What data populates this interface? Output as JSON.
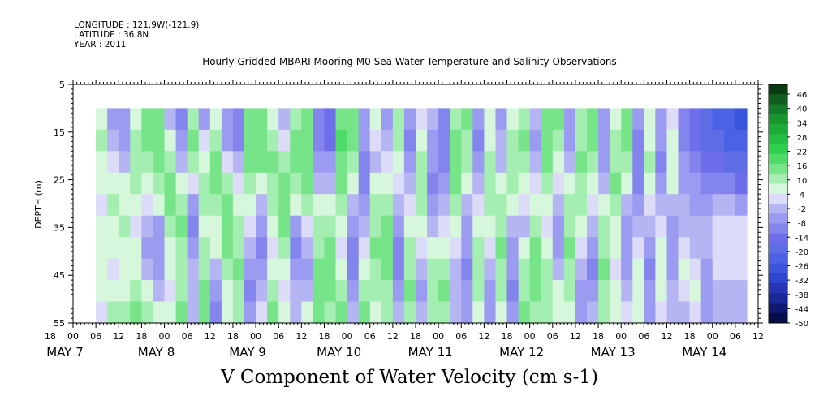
{
  "header": {
    "longitude": "LONGITUDE : 121.9W(-121.9)",
    "latitude": "LATITUDE : 36.8N",
    "year": "YEAR : 2011"
  },
  "chart_data": {
    "type": "heatmap",
    "title": "Hourly Gridded MBARI Mooring M0 Sea Water Temperature and Salinity Observations",
    "xlabel": "V Component of Water Velocity (cm s-1)",
    "ylabel": "DEPTH (m)",
    "y_ticks": [
      5,
      15,
      25,
      35,
      45,
      55
    ],
    "ylim": [
      5,
      55
    ],
    "y_inverted": true,
    "data_depth_range": [
      10,
      55
    ],
    "x_hour_ticks": [
      "18",
      "00",
      "06",
      "12",
      "18",
      "00",
      "06",
      "12",
      "18",
      "00",
      "06",
      "12",
      "18",
      "00",
      "06",
      "12",
      "18",
      "00",
      "06",
      "12",
      "18",
      "00",
      "06",
      "12",
      "18",
      "00",
      "06",
      "12",
      "18",
      "00",
      "06",
      "12"
    ],
    "x_hour_offset_first": 18,
    "x_hour_step": 6,
    "x_day_labels": [
      "MAY  7",
      "MAY  8",
      "MAY  9",
      "MAY 10",
      "MAY 11",
      "MAY 12",
      "MAY 13",
      "MAY 14"
    ],
    "x_day_label_hours": [
      0,
      24,
      48,
      72,
      96,
      120,
      144,
      168
    ],
    "x_data_start_hour": 6,
    "colorbar": {
      "labels": [
        46,
        40,
        34,
        28,
        22,
        16,
        10,
        4,
        -2,
        -8,
        -14,
        -20,
        -26,
        -32,
        -38,
        -44,
        -50
      ],
      "colors": [
        "#0a3a14",
        "#0f5c1f",
        "#137a27",
        "#17962f",
        "#1cab37",
        "#22bf41",
        "#2fd04e",
        "#4fdb68",
        "#77e48a",
        "#a3eeb0",
        "#d6f7dc",
        "#dcdcf8",
        "#b5b5f4",
        "#9b9bf1",
        "#8484ee",
        "#6e6eea",
        "#5d6de6",
        "#4a62e3",
        "#3a55dc",
        "#2e46cf",
        "#2436b4",
        "#1a2796",
        "#10196f",
        "#070d4a"
      ],
      "band_values": [
        49,
        46,
        43,
        40,
        37,
        34,
        31,
        28,
        25,
        22,
        19,
        16,
        13,
        10,
        7,
        4,
        1,
        -2,
        -5,
        -8,
        -11,
        -14,
        -17,
        -20,
        -23,
        -26,
        -29,
        -32,
        -35,
        -38,
        -41,
        -44,
        -47,
        -50
      ]
    },
    "columns": [
      {
        "hour": 6,
        "v": [
          5,
          8,
          6,
          4,
          3,
          5,
          7,
          6,
          4,
          3
        ]
      },
      {
        "hour": 9,
        "v": [
          -6,
          -4,
          2,
          6,
          8,
          7,
          5,
          3,
          6,
          8
        ]
      },
      {
        "hour": 12,
        "v": [
          -8,
          -6,
          -2,
          4,
          7,
          9,
          6,
          4,
          7,
          10
        ]
      },
      {
        "hour": 15,
        "v": [
          4,
          8,
          10,
          9,
          5,
          2,
          4,
          7,
          10,
          12
        ]
      },
      {
        "hour": 18,
        "v": [
          12,
          14,
          10,
          6,
          2,
          -4,
          -6,
          -2,
          4,
          8
        ]
      },
      {
        "hour": 21,
        "v": [
          14,
          16,
          12,
          8,
          4,
          -6,
          -8,
          -6,
          -2,
          4
        ]
      },
      {
        "hour": 24,
        "v": [
          -2,
          4,
          8,
          12,
          14,
          10,
          6,
          4,
          2,
          4
        ]
      },
      {
        "hour": 27,
        "v": [
          -10,
          -8,
          -4,
          6,
          10,
          12,
          10,
          8,
          10,
          12
        ]
      },
      {
        "hour": 30,
        "v": [
          10,
          12,
          8,
          2,
          -8,
          -10,
          -6,
          -2,
          -4,
          -2
        ]
      },
      {
        "hour": 33,
        "v": [
          -6,
          2,
          6,
          10,
          8,
          6,
          8,
          10,
          12,
          14
        ]
      },
      {
        "hour": 36,
        "v": [
          4,
          8,
          12,
          14,
          10,
          6,
          4,
          -2,
          -8,
          -10
        ]
      },
      {
        "hour": 39,
        "v": [
          -8,
          -6,
          2,
          8,
          12,
          14,
          12,
          8,
          6,
          4
        ]
      },
      {
        "hour": 42,
        "v": [
          -12,
          -10,
          -4,
          2,
          6,
          8,
          10,
          12,
          10,
          8
        ]
      },
      {
        "hour": 45,
        "v": [
          12,
          14,
          12,
          8,
          4,
          2,
          -2,
          -8,
          -10,
          -8
        ]
      },
      {
        "hour": 48,
        "v": [
          14,
          16,
          12,
          6,
          -4,
          -8,
          -10,
          -6,
          -2,
          2
        ]
      },
      {
        "hour": 51,
        "v": [
          6,
          10,
          12,
          10,
          8,
          4,
          2,
          6,
          10,
          12
        ]
      },
      {
        "hour": 54,
        "v": [
          -4,
          2,
          8,
          12,
          14,
          12,
          8,
          4,
          2,
          4
        ]
      },
      {
        "hour": 57,
        "v": [
          8,
          12,
          14,
          10,
          6,
          -6,
          -10,
          -8,
          -4,
          -2
        ]
      },
      {
        "hour": 60,
        "v": [
          12,
          14,
          16,
          12,
          8,
          2,
          -4,
          -6,
          -2,
          4
        ]
      },
      {
        "hour": 63,
        "v": [
          -10,
          -12,
          -8,
          -2,
          4,
          8,
          10,
          12,
          14,
          12
        ]
      },
      {
        "hour": 66,
        "v": [
          -16,
          -14,
          -8,
          -2,
          6,
          10,
          12,
          14,
          12,
          10
        ]
      },
      {
        "hour": 69,
        "v": [
          14,
          18,
          16,
          12,
          8,
          4,
          2,
          6,
          10,
          12
        ]
      },
      {
        "hour": 72,
        "v": [
          16,
          14,
          10,
          4,
          -2,
          -8,
          -12,
          -10,
          -6,
          -2
        ]
      },
      {
        "hour": 75,
        "v": [
          -8,
          -6,
          -10,
          -12,
          -8,
          -4,
          2,
          6,
          10,
          12
        ]
      },
      {
        "hour": 78,
        "v": [
          4,
          2,
          -2,
          4,
          8,
          10,
          12,
          10,
          8,
          6
        ]
      },
      {
        "hour": 81,
        "v": [
          -6,
          -4,
          2,
          6,
          10,
          12,
          14,
          12,
          10,
          8
        ]
      },
      {
        "hour": 84,
        "v": [
          8,
          10,
          6,
          2,
          -4,
          -8,
          -10,
          -12,
          -8,
          -4
        ]
      },
      {
        "hour": 87,
        "v": [
          -8,
          -10,
          -8,
          -4,
          2,
          6,
          8,
          10,
          12,
          10
        ]
      },
      {
        "hour": 90,
        "v": [
          2,
          6,
          8,
          10,
          8,
          4,
          2,
          -2,
          -6,
          -4
        ]
      },
      {
        "hour": 93,
        "v": [
          -4,
          -6,
          -8,
          -10,
          -6,
          -2,
          4,
          8,
          10,
          8
        ]
      },
      {
        "hour": 96,
        "v": [
          -10,
          -12,
          -10,
          -6,
          -2,
          2,
          6,
          10,
          12,
          10
        ]
      },
      {
        "hour": 99,
        "v": [
          10,
          12,
          14,
          12,
          8,
          4,
          2,
          -2,
          -4,
          -2
        ]
      },
      {
        "hour": 102,
        "v": [
          12,
          10,
          8,
          4,
          -2,
          -6,
          -8,
          -10,
          -8,
          -6
        ]
      },
      {
        "hour": 105,
        "v": [
          -8,
          -10,
          -8,
          -4,
          2,
          6,
          8,
          10,
          8,
          6
        ]
      },
      {
        "hour": 108,
        "v": [
          4,
          6,
          8,
          10,
          8,
          4,
          2,
          -2,
          -6,
          -8
        ]
      },
      {
        "hour": 111,
        "v": [
          -6,
          -4,
          -2,
          4,
          8,
          10,
          12,
          10,
          8,
          6
        ]
      },
      {
        "hour": 114,
        "v": [
          6,
          8,
          10,
          8,
          4,
          -2,
          -6,
          -8,
          -10,
          -8
        ]
      },
      {
        "hour": 117,
        "v": [
          10,
          12,
          10,
          6,
          2,
          -2,
          4,
          8,
          10,
          12
        ]
      },
      {
        "hour": 120,
        "v": [
          -4,
          -6,
          -4,
          2,
          6,
          10,
          12,
          14,
          12,
          10
        ]
      },
      {
        "hour": 123,
        "v": [
          14,
          16,
          12,
          8,
          4,
          2,
          6,
          8,
          10,
          8
        ]
      },
      {
        "hour": 126,
        "v": [
          12,
          10,
          6,
          2,
          -4,
          -8,
          -6,
          -2,
          4,
          6
        ]
      },
      {
        "hour": 129,
        "v": [
          -8,
          -6,
          -2,
          4,
          8,
          10,
          12,
          10,
          8,
          6
        ]
      },
      {
        "hour": 132,
        "v": [
          8,
          10,
          12,
          10,
          8,
          4,
          2,
          -4,
          -8,
          -6
        ]
      },
      {
        "hour": 135,
        "v": [
          12,
          14,
          10,
          6,
          2,
          -4,
          -8,
          -10,
          -8,
          -4
        ]
      },
      {
        "hour": 138,
        "v": [
          -6,
          -8,
          -6,
          -2,
          4,
          8,
          10,
          12,
          10,
          8
        ]
      },
      {
        "hour": 141,
        "v": [
          6,
          8,
          10,
          12,
          10,
          6,
          4,
          2,
          4,
          6
        ]
      },
      {
        "hour": 144,
        "v": [
          14,
          12,
          8,
          4,
          -2,
          -6,
          -8,
          -6,
          -2,
          2
        ]
      },
      {
        "hour": 147,
        "v": [
          -8,
          -10,
          -12,
          -10,
          -6,
          -2,
          2,
          4,
          6,
          4
        ]
      },
      {
        "hour": 150,
        "v": [
          4,
          6,
          8,
          6,
          2,
          -4,
          -8,
          -10,
          -8,
          -6
        ]
      },
      {
        "hour": 153,
        "v": [
          -6,
          -8,
          -10,
          -8,
          -4,
          2,
          4,
          6,
          4,
          2
        ]
      },
      {
        "hour": 156,
        "v": [
          2,
          4,
          6,
          4,
          -2,
          -6,
          -8,
          -6,
          -4,
          -2
        ]
      },
      {
        "hour": 159,
        "v": [
          -12,
          -10,
          -8,
          -6,
          -4,
          -2,
          2,
          4,
          2,
          -2
        ]
      },
      {
        "hour": 162,
        "v": [
          -16,
          -14,
          -12,
          -8,
          -6,
          -4,
          -2,
          2,
          4,
          2
        ]
      },
      {
        "hour": 165,
        "v": [
          -20,
          -18,
          -14,
          -10,
          -6,
          -4,
          -2,
          -6,
          -8,
          -6
        ]
      },
      {
        "hour": 168,
        "v": [
          -22,
          -20,
          -16,
          -10,
          -2,
          2,
          2,
          2,
          -4,
          -4
        ]
      },
      {
        "hour": 171,
        "v": [
          -24,
          -22,
          -18,
          -12,
          -4,
          2,
          2,
          2,
          -2,
          -2
        ]
      },
      {
        "hour": 174,
        "v": [
          -26,
          -24,
          -20,
          -14,
          -6,
          2,
          2,
          2,
          -2,
          -2
        ]
      }
    ]
  }
}
